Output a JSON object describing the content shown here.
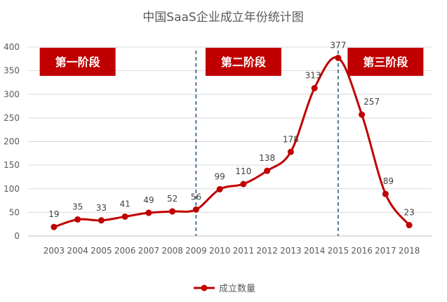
{
  "chart_data": {
    "type": "line",
    "title": "中国SaaS企业成立年份统计图",
    "xlabel": "",
    "ylabel": "",
    "categories": [
      "2003",
      "2004",
      "2005",
      "2006",
      "2007",
      "2008",
      "2009",
      "2010",
      "2011",
      "2012",
      "2013",
      "2014",
      "2015",
      "2016",
      "2017",
      "2018"
    ],
    "series": [
      {
        "name": "成立数量",
        "values": [
          19,
          35,
          33,
          41,
          49,
          52,
          56,
          99,
          110,
          138,
          178,
          313,
          377,
          257,
          89,
          23
        ],
        "color": "#C00000"
      }
    ],
    "ylim": [
      0,
      400
    ],
    "yticks": [
      0,
      50,
      100,
      150,
      200,
      250,
      300,
      350,
      400
    ],
    "grid": true,
    "legend_position": "bottom",
    "stage_color": "#C00000",
    "annotations": [
      {
        "label": "第一阶段",
        "category": "2004"
      },
      {
        "label": "第二阶段",
        "category": "2011"
      },
      {
        "label": "第三阶段",
        "category": "2017"
      }
    ],
    "divider_years": [
      "2009",
      "2015"
    ],
    "divider_color": "#1F4E79"
  }
}
